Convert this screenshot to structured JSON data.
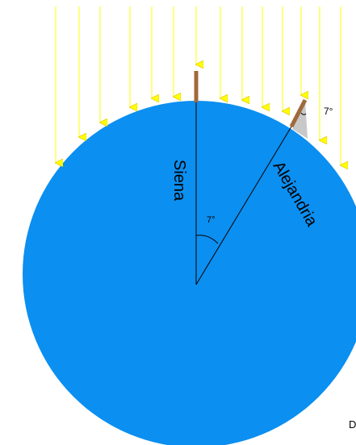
{
  "labels": {
    "siena": "Siena",
    "alejandria": "Alejandria",
    "angle_center": "7°",
    "angle_shadow": "7°",
    "corner_text": "D"
  },
  "colors": {
    "earth": "#0b8ff0",
    "sun_ray": "#ffff00",
    "stick": "#a0693b",
    "shadow": "#c8c8c8",
    "line": "#000000"
  },
  "icons": {
    "sun_rays": "downward-arrows",
    "gnomon": "vertical-stick"
  }
}
